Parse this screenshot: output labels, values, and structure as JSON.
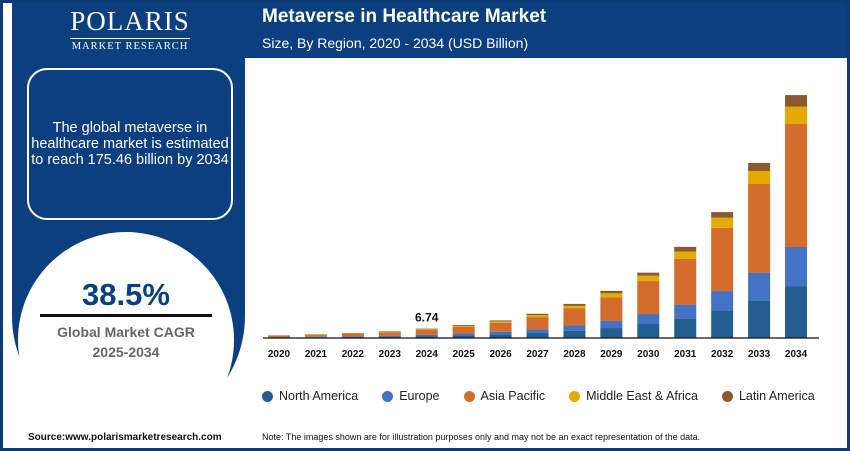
{
  "brand": {
    "name": "POLARIS",
    "tagline": "MARKET RESEARCH"
  },
  "header": {
    "title": "Metaverse in Healthcare Market",
    "subtitle": "Size, By Region, 2020 - 2034 (USD Billion)"
  },
  "summary": "The global metaverse in healthcare market is estimated to reach 175.46 billion by 2034",
  "cagr": {
    "value": "38.5%",
    "label1": "Global Market CAGR",
    "label2": "2025-2034"
  },
  "source": "Source:www.polarismarketresearch.com",
  "note": "Note: The images shown are for illustration purposes only and may not be an exact representation of the data.",
  "chart_data": {
    "type": "bar",
    "stacked": true,
    "title": "Metaverse in Healthcare Market",
    "subtitle": "Size, By Region, 2020 - 2034 (USD Billion)",
    "categories": [
      "2020",
      "2021",
      "2022",
      "2023",
      "2024",
      "2025",
      "2026",
      "2027",
      "2028",
      "2029",
      "2030",
      "2031",
      "2032",
      "2033",
      "2034"
    ],
    "series": [
      {
        "name": "North America",
        "color": "#245e90",
        "values": [
          0.37,
          0.51,
          0.7,
          0.98,
          1.35,
          1.9,
          2.6,
          3.6,
          5.1,
          7.2,
          10.1,
          14.0,
          19.5,
          27.0,
          37.5
        ]
      },
      {
        "name": "Europe",
        "color": "#4472c4",
        "values": [
          0.27,
          0.38,
          0.52,
          0.72,
          1.0,
          1.4,
          1.9,
          2.6,
          3.9,
          5.1,
          7.2,
          10.1,
          14.4,
          20.2,
          28.2
        ]
      },
      {
        "name": "Asia Pacific",
        "color": "#d36c2c",
        "values": [
          0.93,
          1.28,
          1.76,
          2.45,
          3.4,
          4.7,
          6.5,
          8.9,
          12.3,
          17.1,
          23.8,
          33.0,
          45.7,
          64.0,
          88.8
        ]
      },
      {
        "name": "Middle East & Africa",
        "color": "#e4aa00",
        "values": [
          0.16,
          0.22,
          0.3,
          0.42,
          0.57,
          0.8,
          1.0,
          1.4,
          1.9,
          2.9,
          3.9,
          5.3,
          7.2,
          9.4,
          12.5
        ]
      },
      {
        "name": "Latin America",
        "color": "#8b5a2b",
        "values": [
          0.12,
          0.16,
          0.22,
          0.3,
          0.42,
          0.6,
          0.7,
          1.0,
          1.4,
          1.7,
          2.2,
          3.4,
          4.1,
          5.8,
          8.4
        ]
      }
    ],
    "annotations": [
      {
        "category": "2024",
        "label": "6.74"
      }
    ],
    "ylim": [
      0,
      175.46
    ],
    "grid": false,
    "legend": "bottom"
  }
}
